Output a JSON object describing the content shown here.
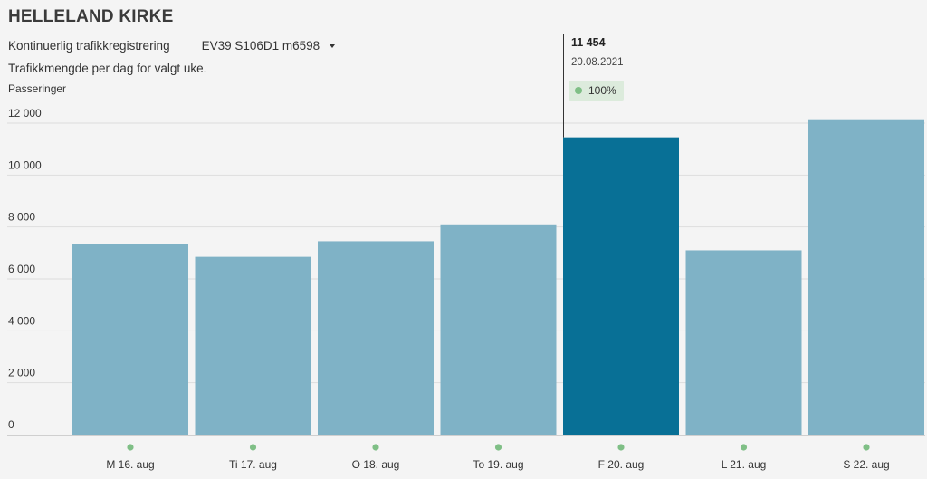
{
  "header": {
    "title": "HELLELAND KIRKE",
    "registration_type": "Kontinuerlig trafikkregistrering",
    "location_select": "EV39 S106D1 m6598",
    "description": "Trafikkmengde per dag for valgt uke."
  },
  "tooltip": {
    "value": "11 454",
    "date": "20.08.2021",
    "coverage": "100%"
  },
  "colors": {
    "bar": "#7fb2c6",
    "bar_selected": "#087096",
    "status_ok": "#7fbf86",
    "grid": "#dddddd"
  },
  "chart_data": {
    "type": "bar",
    "title": "",
    "xlabel": "",
    "ylabel": "Passeringer",
    "ylim": [
      0,
      12000
    ],
    "yticks": [
      0,
      2000,
      4000,
      6000,
      8000,
      10000,
      12000
    ],
    "ytick_labels": [
      "0",
      "2 000",
      "4 000",
      "6 000",
      "8 000",
      "10 000",
      "12 000"
    ],
    "categories": [
      "M 16. aug",
      "Ti 17. aug",
      "O 18. aug",
      "To 19. aug",
      "F 20. aug",
      "L 21. aug",
      "S 22. aug"
    ],
    "values": [
      7350,
      6850,
      7450,
      8100,
      11454,
      7100,
      12150
    ],
    "selected_index": 4,
    "grid": true,
    "legend": "none"
  }
}
